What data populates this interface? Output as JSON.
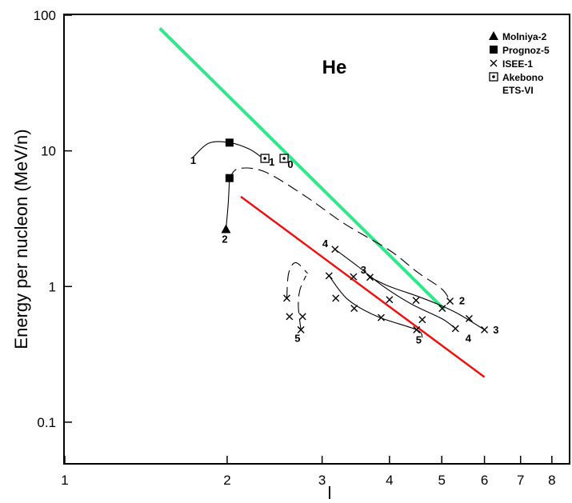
{
  "chart_data": {
    "type": "scatter",
    "title": "He",
    "xlabel": "l",
    "ylabel": "Energy per nucleon (MeV/n)",
    "xscale": "log",
    "yscale": "log",
    "xlim": [
      1,
      8.6
    ],
    "ylim": [
      0.05,
      100
    ],
    "x_ticks": [
      {
        "value": 1,
        "label": "1"
      },
      {
        "value": 2,
        "label": "2"
      },
      {
        "value": 3,
        "label": "3"
      },
      {
        "value": 4,
        "label": "4"
      },
      {
        "value": 5,
        "label": "5"
      },
      {
        "value": 6,
        "label": "6"
      },
      {
        "value": 7,
        "label": "7"
      },
      {
        "value": 8,
        "label": "8"
      }
    ],
    "y_ticks": [
      {
        "value": 100,
        "label": "100"
      },
      {
        "value": 10,
        "label": "10"
      },
      {
        "value": 1,
        "label": "1"
      },
      {
        "value": 0.1,
        "label": "0.1"
      }
    ],
    "grid": false,
    "legend_position": "top-right",
    "legend": [
      {
        "marker": "triangle",
        "label": "Molniya-2"
      },
      {
        "marker": "square",
        "label": "Prognoz-5"
      },
      {
        "marker": "cross",
        "label": "ISEE-1"
      },
      {
        "marker": "dotted-square",
        "label": "Akebono",
        "label2": "ETS-VI"
      }
    ],
    "colors": {
      "green_line": "#2ee88a",
      "red_line": "#ee1111",
      "axes": "#000000"
    },
    "lines": [
      {
        "color": "green",
        "style": "solid",
        "points": [
          [
            1.5,
            80
          ],
          [
            5.05,
            0.68
          ]
        ]
      },
      {
        "color": "red",
        "style": "solid",
        "points": [
          [
            2.12,
            4.6
          ],
          [
            6.0,
            0.215
          ]
        ]
      }
    ],
    "series": [
      {
        "marker": "triangle",
        "points": [
          [
            1.99,
            2.65
          ]
        ]
      },
      {
        "marker": "square",
        "points": [
          [
            2.02,
            11.5
          ],
          [
            2.02,
            6.3
          ]
        ]
      },
      {
        "marker": "dotted-square",
        "points": [
          [
            2.35,
            8.8
          ],
          [
            2.55,
            8.8
          ]
        ]
      },
      {
        "marker": "cross",
        "points": [
          [
            3.17,
            1.88
          ],
          [
            3.09,
            1.2
          ],
          [
            3.43,
            1.18
          ],
          [
            3.18,
            0.82
          ],
          [
            3.44,
            0.69
          ],
          [
            3.86,
            0.59
          ],
          [
            4.49,
            0.48
          ],
          [
            3.68,
            1.17
          ],
          [
            4.0,
            0.8
          ],
          [
            4.48,
            0.79
          ],
          [
            4.6,
            0.57
          ],
          [
            5.01,
            0.69
          ],
          [
            5.18,
            0.78
          ],
          [
            5.3,
            0.49
          ],
          [
            5.62,
            0.58
          ],
          [
            6.0,
            0.48
          ],
          [
            2.58,
            0.82
          ],
          [
            2.61,
            0.6
          ],
          [
            2.76,
            0.6
          ],
          [
            2.74,
            0.48
          ]
        ]
      }
    ],
    "curves": [
      {
        "style": "solid",
        "points": [
          [
            1.73,
            9.0
          ],
          [
            1.85,
            11.4
          ],
          [
            2.02,
            11.5
          ],
          [
            2.2,
            10.3
          ],
          [
            2.33,
            8.8
          ]
        ]
      },
      {
        "style": "solid",
        "points": [
          [
            1.99,
            2.65
          ],
          [
            2.01,
            4.2
          ],
          [
            2.02,
            6.3
          ]
        ]
      },
      {
        "style": "dashed",
        "points": [
          [
            2.02,
            6.3
          ],
          [
            2.1,
            7.4
          ],
          [
            2.35,
            7.0
          ],
          [
            2.8,
            4.6
          ],
          [
            3.3,
            2.9
          ],
          [
            4.0,
            1.85
          ],
          [
            4.5,
            1.28
          ],
          [
            5.0,
            0.96
          ],
          [
            5.18,
            0.78
          ]
        ]
      },
      {
        "style": "solid",
        "points": [
          [
            3.17,
            1.88
          ],
          [
            3.5,
            1.4
          ],
          [
            3.9,
            1.0
          ],
          [
            4.4,
            0.74
          ],
          [
            5.0,
            0.58
          ],
          [
            5.3,
            0.49
          ]
        ]
      },
      {
        "style": "solid",
        "points": [
          [
            3.68,
            1.17
          ],
          [
            4.0,
            1.0
          ],
          [
            4.5,
            0.85
          ],
          [
            5.0,
            0.72
          ],
          [
            5.4,
            0.62
          ],
          [
            6.0,
            0.48
          ]
        ]
      },
      {
        "style": "solid",
        "points": [
          [
            3.09,
            1.2
          ],
          [
            3.35,
            0.8
          ],
          [
            3.8,
            0.6
          ],
          [
            4.49,
            0.48
          ],
          [
            4.6,
            0.42
          ]
        ]
      },
      {
        "style": "dashed",
        "points": [
          [
            2.58,
            0.82
          ],
          [
            2.6,
            1.25
          ],
          [
            2.68,
            1.5
          ],
          [
            2.82,
            1.25
          ]
        ]
      },
      {
        "style": "dashed",
        "points": [
          [
            2.74,
            0.48
          ],
          [
            2.71,
            0.72
          ],
          [
            2.73,
            0.95
          ],
          [
            2.8,
            1.2
          ]
        ]
      }
    ],
    "annotations": [
      {
        "text": "1",
        "x": 1.73,
        "y": 8.0
      },
      {
        "text": "1",
        "x": 2.42,
        "y": 7.8
      },
      {
        "text": "0",
        "x": 2.62,
        "y": 7.5
      },
      {
        "text": "2",
        "x": 1.98,
        "y": 2.1
      },
      {
        "text": "4",
        "x": 3.04,
        "y": 1.95
      },
      {
        "text": "3",
        "x": 3.58,
        "y": 1.25
      },
      {
        "text": "2",
        "x": 5.45,
        "y": 0.74
      },
      {
        "text": "4",
        "x": 5.6,
        "y": 0.39
      },
      {
        "text": "3",
        "x": 6.3,
        "y": 0.45
      },
      {
        "text": "5",
        "x": 4.53,
        "y": 0.38
      },
      {
        "text": "5",
        "x": 2.7,
        "y": 0.39
      }
    ]
  }
}
